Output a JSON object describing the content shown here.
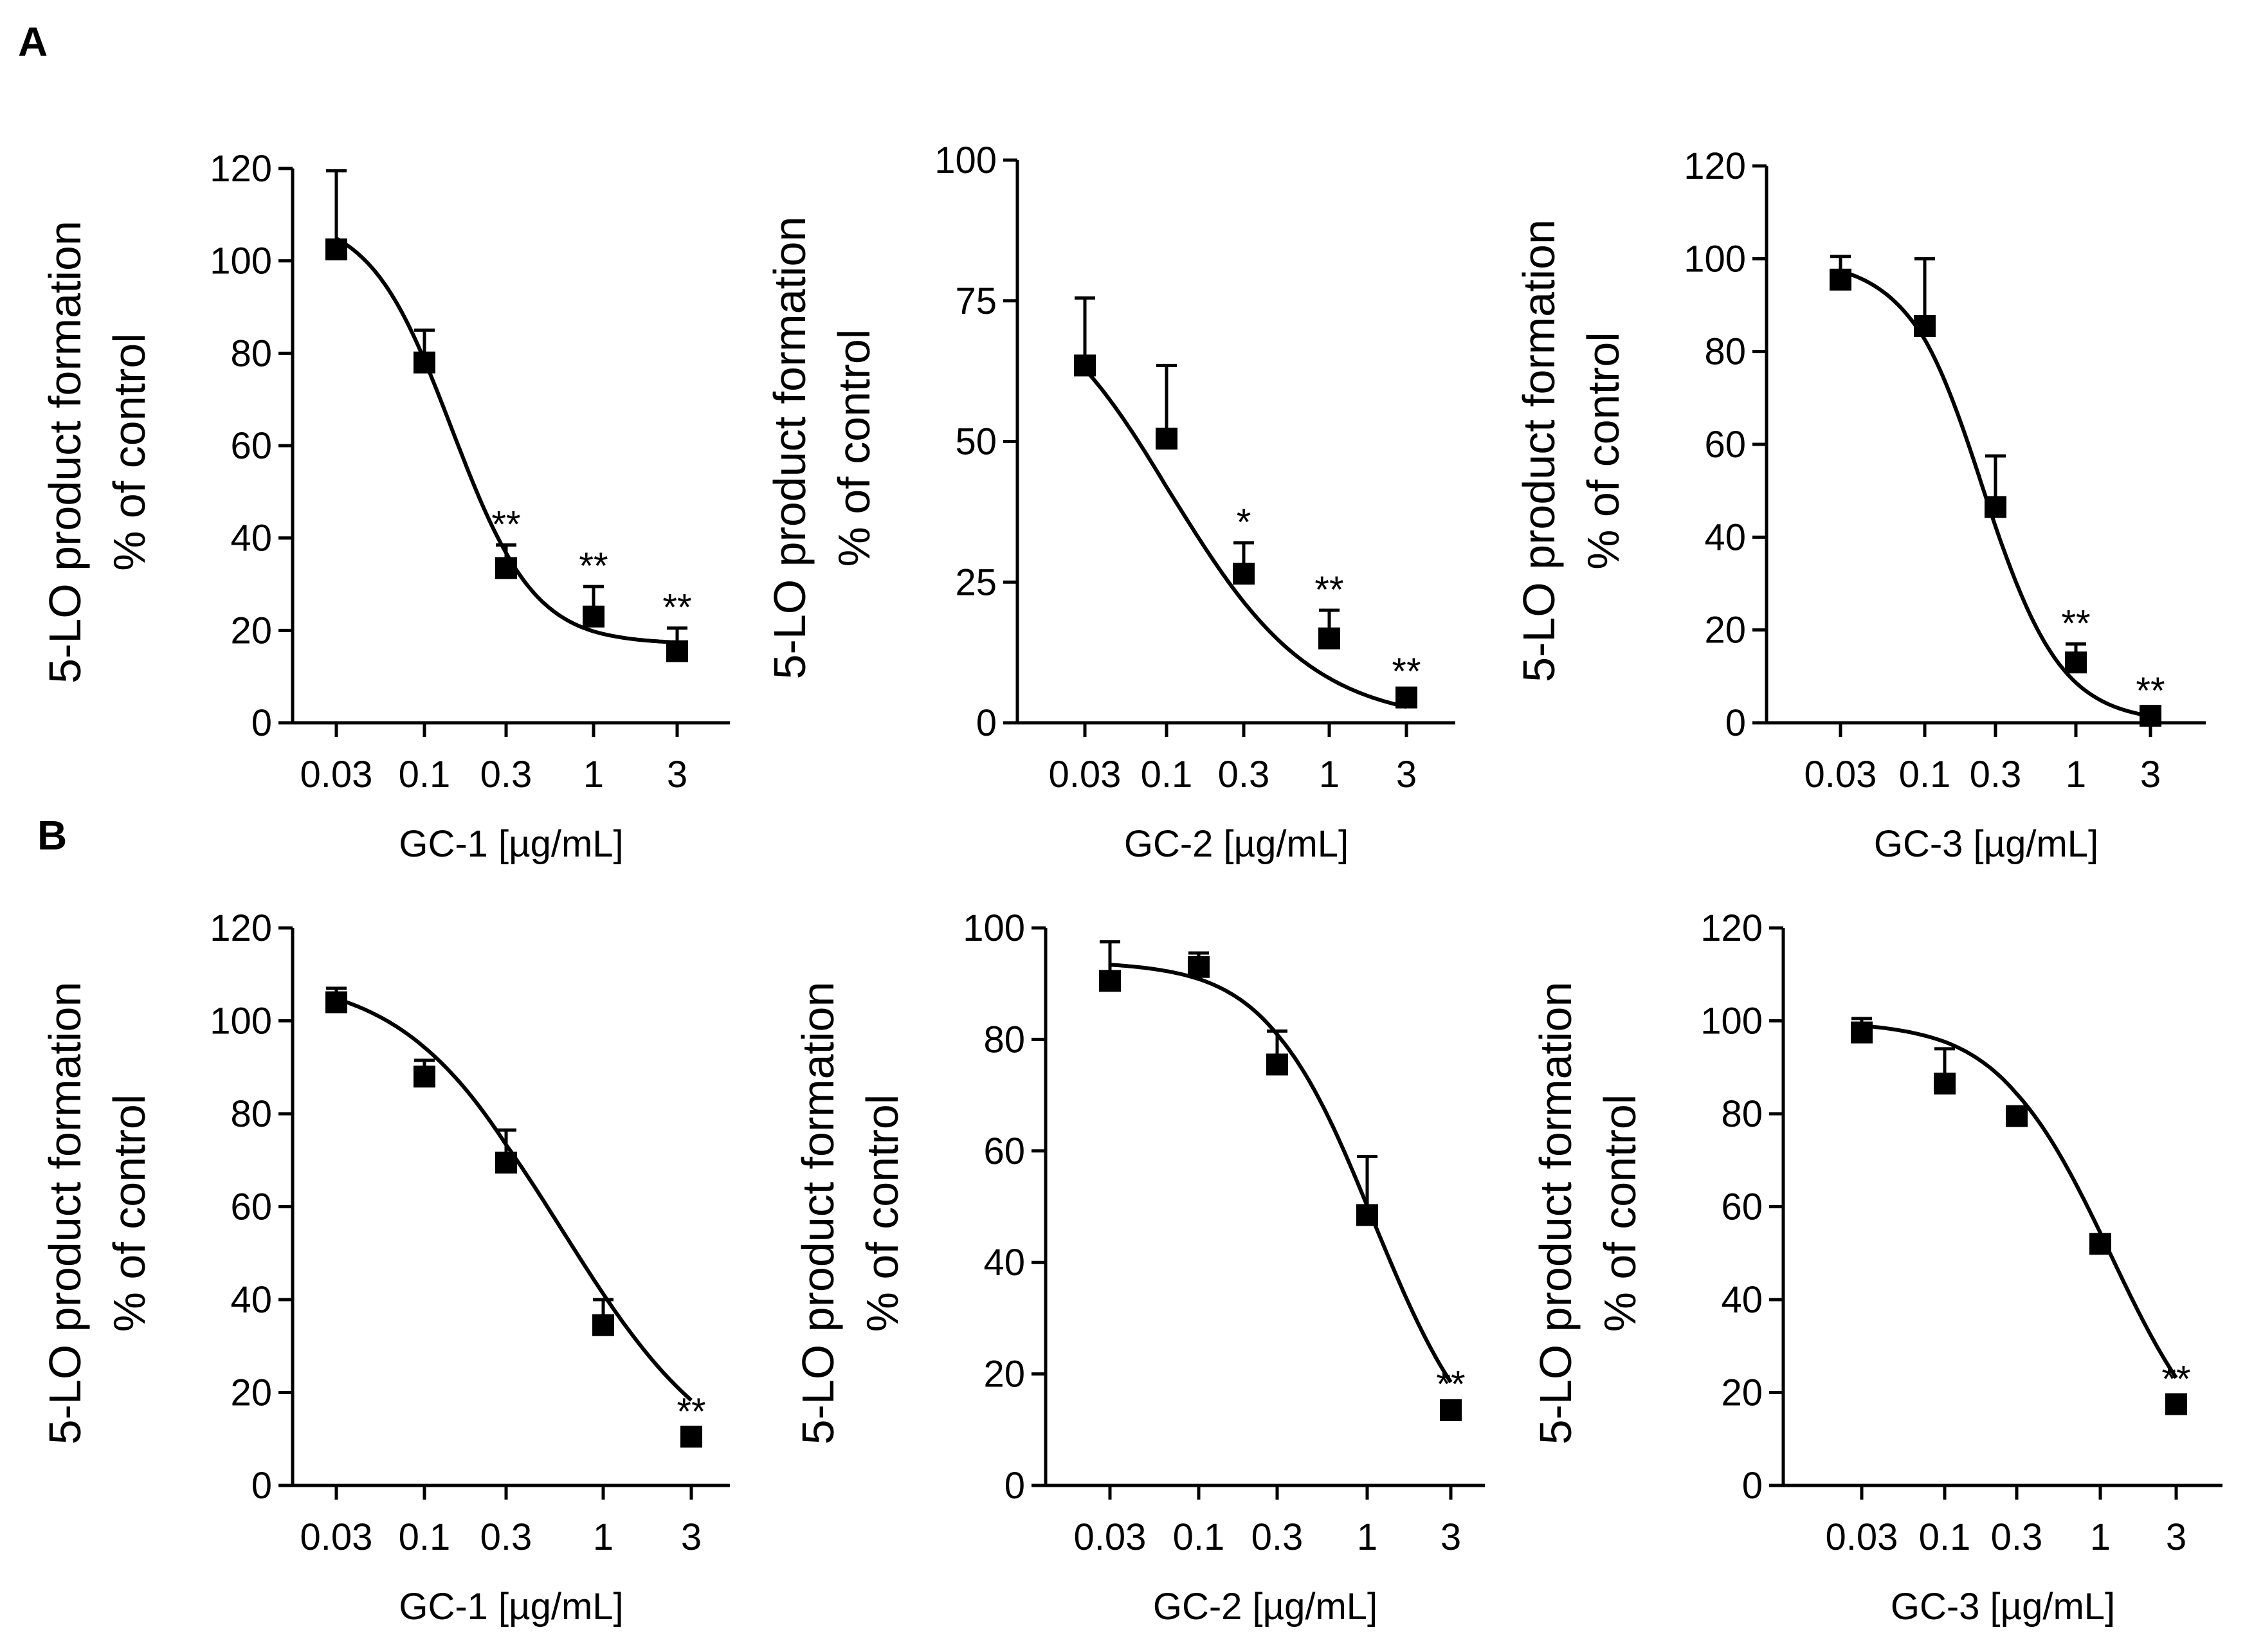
{
  "panel_labels": [
    "A",
    "B"
  ],
  "chart_data": [
    {
      "type": "scatter",
      "panel": "A",
      "title": "",
      "ylabel_line1": "5-LO product formation",
      "ylabel_line2": "% of control",
      "xlabel": "GC-1 [µg/mL]",
      "x_tick_labels": [
        "0.03",
        "0.1",
        "0.3",
        "1",
        "3"
      ],
      "ylim": [
        0,
        120
      ],
      "y_ticks": [
        0,
        20,
        40,
        60,
        80,
        100,
        120
      ],
      "series": [
        {
          "name": "GC-1",
          "x": [
            0.03,
            0.1,
            0.3,
            1,
            3
          ],
          "y": [
            102.5,
            78,
            33.5,
            23,
            15.5
          ],
          "error": [
            17,
            7,
            5,
            6.5,
            5
          ],
          "significance": [
            "",
            "",
            "**",
            "**",
            "**"
          ]
        }
      ],
      "fit": {
        "top": 110,
        "bottom": 17,
        "ic50": 0.145,
        "hill": 1.8
      }
    },
    {
      "type": "scatter",
      "panel": "A",
      "title": "",
      "ylabel_line1": "5-LO product formation",
      "ylabel_line2": "% of control",
      "xlabel": "GC-2 [µg/mL]",
      "x_tick_labels": [
        "0.03",
        "0.1",
        "0.3",
        "1",
        "3"
      ],
      "ylim": [
        0,
        100
      ],
      "y_ticks": [
        0,
        25,
        50,
        75,
        100
      ],
      "series": [
        {
          "name": "GC-2",
          "x": [
            0.03,
            0.1,
            0.3,
            1,
            3
          ],
          "y": [
            63.5,
            50.5,
            26.5,
            15,
            4.5
          ],
          "error": [
            12,
            13,
            5.5,
            5,
            1
          ],
          "significance": [
            "",
            "",
            "*",
            "**",
            "**"
          ]
        }
      ],
      "fit": {
        "top": 80,
        "bottom": 0,
        "ic50": 0.11,
        "hill": 1.0
      }
    },
    {
      "type": "scatter",
      "panel": "A",
      "title": "",
      "ylabel_line1": "5-LO product formation",
      "ylabel_line2": "% of control",
      "xlabel": "GC-3 [µg/mL]",
      "x_tick_labels": [
        "0.03",
        "0.1",
        "0.3",
        "1",
        "3"
      ],
      "ylim": [
        0,
        120
      ],
      "y_ticks": [
        0,
        20,
        40,
        60,
        80,
        100,
        120
      ],
      "series": [
        {
          "name": "GC-3",
          "x": [
            0.03,
            0.1,
            0.3,
            1,
            3
          ],
          "y": [
            95.5,
            85.5,
            46.5,
            13,
            1.5
          ],
          "error": [
            5,
            14.5,
            11,
            4,
            1
          ],
          "significance": [
            "",
            "",
            "",
            "**",
            "**"
          ]
        }
      ],
      "fit": {
        "top": 100,
        "bottom": 0,
        "ic50": 0.25,
        "hill": 1.7
      }
    },
    {
      "type": "scatter",
      "panel": "B",
      "title": "",
      "ylabel_line1": "5-LO product formation",
      "ylabel_line2": "% of control",
      "xlabel": "GC-1 [µg/mL]",
      "x_tick_labels": [
        "0.03",
        "0.1",
        "0.3",
        "1",
        "3"
      ],
      "ylim": [
        0,
        120
      ],
      "y_ticks": [
        0,
        20,
        40,
        60,
        80,
        100,
        120
      ],
      "series": [
        {
          "name": "GC-1",
          "x": [
            0.03,
            0.1,
            0.3,
            1,
            3
          ],
          "y": [
            104,
            88,
            69.5,
            34.5,
            10.5
          ],
          "error": [
            3,
            3.5,
            7,
            5.5,
            1
          ],
          "significance": [
            "",
            "",
            "",
            "",
            "**"
          ]
        }
      ],
      "fit": {
        "top": 110,
        "bottom": 0,
        "ic50": 0.6,
        "hill": 1.0
      }
    },
    {
      "type": "scatter",
      "panel": "B",
      "title": "",
      "ylabel_line1": "5-LO product formation",
      "ylabel_line2": "% of control",
      "xlabel": "GC-2 [µg/mL]",
      "x_tick_labels": [
        "0.03",
        "0.1",
        "0.3",
        "1",
        "3"
      ],
      "ylim": [
        0,
        100
      ],
      "y_ticks": [
        0,
        20,
        40,
        60,
        80,
        100
      ],
      "series": [
        {
          "name": "GC-2",
          "x": [
            0.03,
            0.1,
            0.3,
            1,
            3
          ],
          "y": [
            90.5,
            93,
            75.5,
            48.5,
            13.5
          ],
          "error": [
            7,
            2.5,
            6,
            10.5,
            1
          ],
          "significance": [
            "",
            "",
            "",
            "",
            "**"
          ]
        }
      ],
      "fit": {
        "top": 94,
        "bottom": 0,
        "ic50": 1.1,
        "hill": 1.4
      }
    },
    {
      "type": "scatter",
      "panel": "B",
      "title": "",
      "ylabel_line1": "5-LO product formation",
      "ylabel_line2": "% of control",
      "xlabel": "GC-3 [µg/mL]",
      "x_tick_labels": [
        "0.03",
        "0.1",
        "0.3",
        "1",
        "3"
      ],
      "ylim": [
        0,
        120
      ],
      "y_ticks": [
        0,
        20,
        40,
        60,
        80,
        100,
        120
      ],
      "series": [
        {
          "name": "GC-3",
          "x": [
            0.03,
            0.1,
            0.3,
            1,
            3
          ],
          "y": [
            97.5,
            86.5,
            79.5,
            52,
            17.5
          ],
          "error": [
            3,
            7.5,
            1,
            1.5,
            1
          ],
          "significance": [
            "",
            "",
            "",
            "",
            "**"
          ]
        }
      ],
      "fit": {
        "top": 100,
        "bottom": 0,
        "ic50": 1.15,
        "hill": 1.25
      }
    }
  ]
}
